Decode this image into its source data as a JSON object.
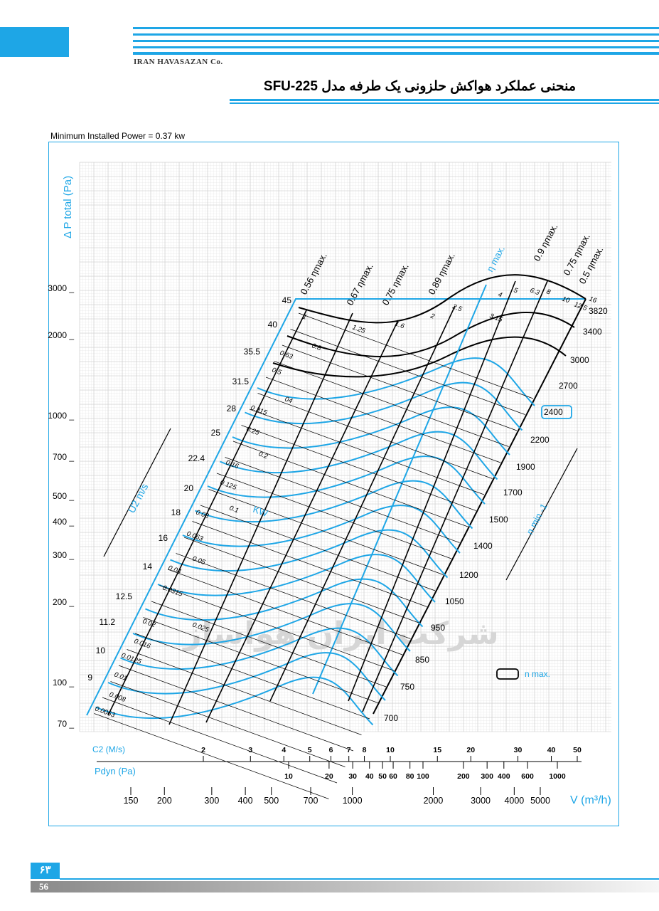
{
  "header": {
    "company": "IRAN HAVASAZAN Co.",
    "title": "منحنی عملکرد هواکش حلزونی یک طرفه مدل SFU-225"
  },
  "chart_meta": {
    "min_power": "Minimum Installed Power = 0.37 kw",
    "y_axis_label": "Δ P total (Pa)",
    "x_axis_label": "V (m³/h)",
    "c2_label": "C2 (M/s)",
    "pdyn_label": "Pdyn (Pa)",
    "u2_label": "U2 m/s",
    "rpm_label": "n min -1",
    "kw_label": "KW",
    "nmax_legend": "n max.",
    "watermark": "شرکت ایران هواساز",
    "colors": {
      "accent": "#1ea6e6",
      "ink": "#000000",
      "grid": "#cfcfcf"
    }
  },
  "chart_data": {
    "type": "line",
    "y_scale": "log",
    "x_scale": "log",
    "ylim": [
      70,
      4000
    ],
    "xlim": [
      130,
      7000
    ],
    "y_ticks": [
      70,
      100,
      200,
      300,
      400,
      500,
      700,
      1000,
      2000,
      3000
    ],
    "y_tick_labels": [
      "70",
      "100",
      "200",
      "300",
      "400",
      "500",
      "700",
      "1000",
      "2000",
      "3000"
    ],
    "x_ticks": [
      150,
      200,
      300,
      400,
      500,
      700,
      1000,
      2000,
      3000,
      4000,
      5000
    ],
    "x_tick_labels": [
      "150",
      "200",
      "300",
      "400",
      "500",
      "700",
      "1000",
      "2000",
      "3000",
      "4000",
      "5000"
    ],
    "c2_ticks": [
      "2",
      "3",
      "4",
      "5",
      "6",
      "7",
      "8",
      "10",
      "15",
      "20",
      "30",
      "40",
      "50"
    ],
    "c2_values": [
      2,
      3,
      4,
      5,
      6,
      7,
      8,
      10,
      15,
      20,
      30,
      40,
      50
    ],
    "pdyn_ticks": [
      "10",
      "20",
      "30",
      "40",
      "50",
      "60",
      "80",
      "100",
      "200",
      "300",
      "400",
      "600",
      "1000"
    ],
    "pdyn_values": [
      10,
      20,
      30,
      40,
      50,
      60,
      80,
      100,
      200,
      300,
      400,
      600,
      1000
    ],
    "u2_values": [
      "45",
      "40",
      "35.5",
      "31.5",
      "28",
      "25",
      "22.4",
      "20",
      "18",
      "16",
      "14",
      "12.5",
      "11.2",
      "10",
      "9"
    ],
    "power_kw": [
      "1",
      "1.25",
      "1.6",
      "2",
      "2.5",
      "4",
      "5",
      "6.3",
      "8",
      "10",
      "12.5",
      "16",
      "0.8",
      "0.63",
      "0.5",
      "04",
      "0.315",
      "0.25",
      "0.2",
      "0.16",
      "0.125",
      "0.1",
      "0.08",
      "0.063",
      "0.05",
      "0.04",
      "0.0315",
      "0.025",
      "0.02",
      "0.016",
      "0.0125",
      "0.01",
      "0.008",
      "0.0063",
      "3.15"
    ],
    "rpm_values": [
      "3820",
      "3400",
      "3000",
      "2700",
      "2400",
      "2200",
      "1900",
      "1700",
      "1500",
      "1400",
      "1200",
      "1050",
      "950",
      "850",
      "750",
      "700"
    ],
    "rpm_max": "2400",
    "efficiency_lines": [
      "0.56 ηmax.",
      "0.67 ηmax.",
      "0.75 ηmax.",
      "0.89 ηmax.",
      "η max.",
      "0.9 ηmax.",
      "0.75 ηmax.",
      "0.5 ηmax."
    ]
  }
}
